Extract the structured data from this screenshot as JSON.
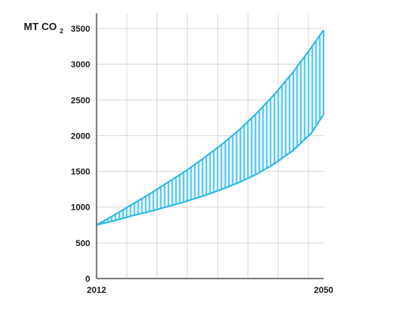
{
  "chart_data": {
    "type": "area",
    "title": "",
    "ylabel": "MT CO",
    "ylabel_subscript": "2",
    "xlabel": "",
    "xlim": [
      2012,
      2050
    ],
    "ylim": [
      0,
      3500
    ],
    "x_ticks": [
      2012,
      2050
    ],
    "y_ticks": [
      0,
      500,
      1000,
      1500,
      2000,
      2500,
      3000,
      3500
    ],
    "grid": true,
    "band": {
      "x": [
        2012,
        2015,
        2018,
        2021,
        2024,
        2027,
        2030,
        2033,
        2036,
        2039,
        2042,
        2045,
        2048,
        2050
      ],
      "upper": [
        750,
        890,
        1040,
        1190,
        1350,
        1510,
        1690,
        1880,
        2090,
        2330,
        2600,
        2900,
        3240,
        3480
      ],
      "lower": [
        750,
        810,
        880,
        940,
        1010,
        1080,
        1160,
        1250,
        1350,
        1470,
        1620,
        1800,
        2040,
        2300
      ]
    },
    "colors": {
      "band_fill": "#e3f5fc",
      "band_line": "#2ab8e8",
      "grid": "#d8d8d8",
      "axis": "#555555"
    }
  }
}
